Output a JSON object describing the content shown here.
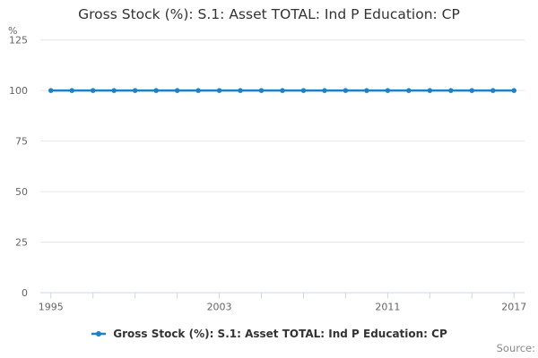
{
  "title": "Gross Stock (%): S.1: Asset TOTAL: Ind P Education: CP",
  "source_label": "Source:",
  "colors": {
    "series": "#1f80c4",
    "gridline": "#e6e6e6",
    "axis_line": "#ccd6eb",
    "tick": "#ccd6eb",
    "axis_label": "#666666",
    "title_text": "#333333",
    "legend_text": "#333333",
    "source_text": "#8a8a8a",
    "background": "#ffffff"
  },
  "legend": {
    "marker_icon": "line-with-dot-icon"
  },
  "chart_data": {
    "type": "line",
    "title": "Gross Stock (%): S.1: Asset TOTAL: Ind P Education: CP",
    "xlabel": "",
    "ylabel": "%",
    "x": [
      1995,
      1996,
      1997,
      1998,
      1999,
      2000,
      2001,
      2002,
      2003,
      2004,
      2005,
      2006,
      2007,
      2008,
      2009,
      2010,
      2011,
      2012,
      2013,
      2014,
      2015,
      2016,
      2017
    ],
    "series": [
      {
        "name": "Gross Stock (%): S.1: Asset TOTAL: Ind P Education: CP",
        "values": [
          100,
          100,
          100,
          100,
          100,
          100,
          100,
          100,
          100,
          100,
          100,
          100,
          100,
          100,
          100,
          100,
          100,
          100,
          100,
          100,
          100,
          100,
          100
        ]
      }
    ],
    "ylim": [
      0,
      125
    ],
    "yticks": [
      0,
      25,
      50,
      75,
      100,
      125
    ],
    "xtick_every": 2,
    "xtick_labels": [
      "1995",
      "2003",
      "2011",
      "2017"
    ],
    "grid": true,
    "legend_position": "bottom"
  }
}
